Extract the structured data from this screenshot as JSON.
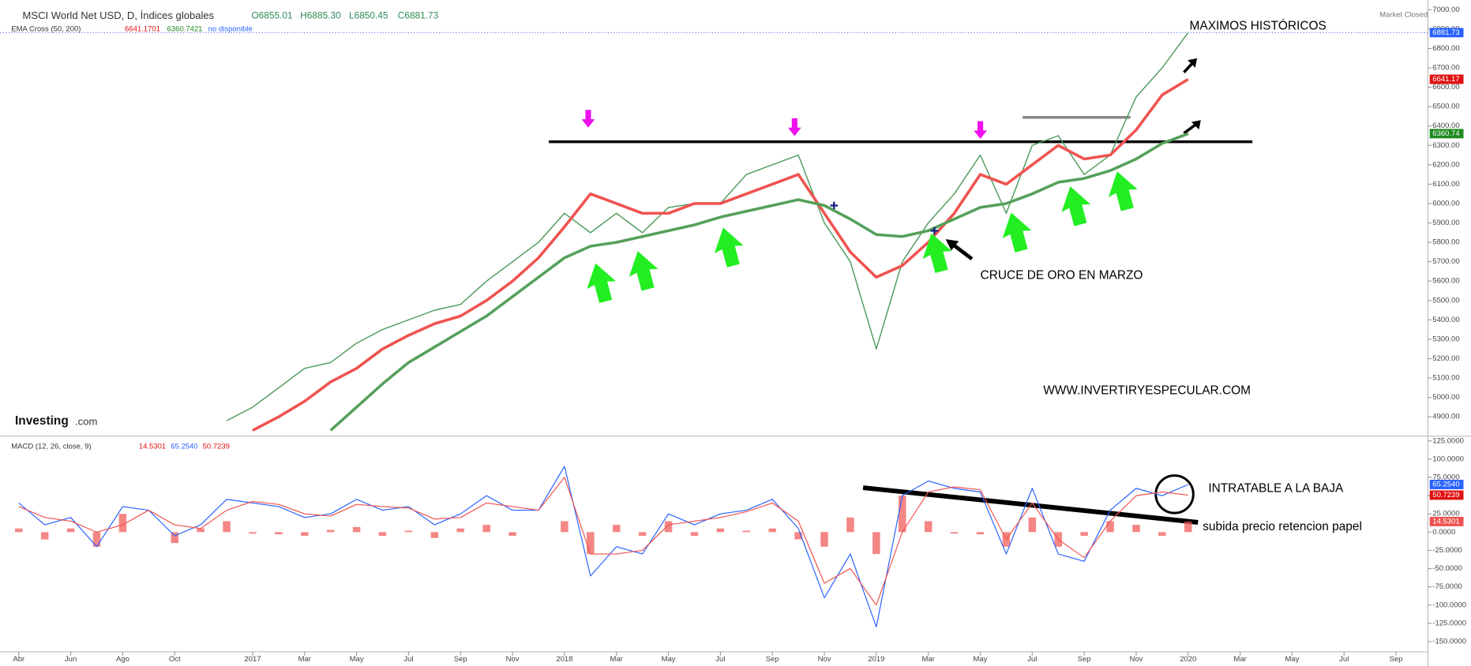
{
  "header": {
    "title": "MSCI World Net USD, D, Índices globales",
    "ohlc": [
      "O6855.01",
      "H6885.30",
      "L6850.45",
      "C6881.73"
    ],
    "indicator": "EMA Cross (50, 200)",
    "indicator_values": [
      "6641.1701",
      "6360.7421",
      "no disponible"
    ],
    "status": "Market Closed",
    "brand": [
      "Investing",
      ".com"
    ]
  },
  "chart_data": [
    {
      "type": "line",
      "ylim": [
        4810,
        7025
      ],
      "yticks": [
        {
          "value": 4900,
          "label": "4900.00"
        },
        {
          "value": 5000,
          "label": "5000.00"
        },
        {
          "value": 5100,
          "label": "5100.00"
        },
        {
          "value": 5200,
          "label": "5200.00"
        },
        {
          "value": 5300,
          "label": "5300.00"
        },
        {
          "value": 5400,
          "label": "5400.00"
        },
        {
          "value": 5500,
          "label": "5500.00"
        },
        {
          "value": 5600,
          "label": "5600.00"
        },
        {
          "value": 5700,
          "label": "5700.00"
        },
        {
          "value": 5800,
          "label": "5800.00"
        },
        {
          "value": 5900,
          "label": "5900.00"
        },
        {
          "value": 6000,
          "label": "6000.00"
        },
        {
          "value": 6100,
          "label": "6100.00"
        },
        {
          "value": 6200,
          "label": "6200.00"
        },
        {
          "value": 6300,
          "label": "6300.00"
        },
        {
          "value": 6400,
          "label": "6400.00"
        },
        {
          "value": 6500,
          "label": "6500.00"
        },
        {
          "value": 6600,
          "label": "6600.00"
        },
        {
          "value": 6700,
          "label": "6700.00"
        },
        {
          "value": 6800,
          "label": "6800.00"
        },
        {
          "value": 6900,
          "label": "6900.00"
        },
        {
          "value": 7000,
          "label": "7000.00"
        }
      ],
      "series": [
        {
          "color": "#4c9a5c",
          "values": [
            null,
            null,
            null,
            null,
            null,
            null,
            null,
            null,
            4880,
            4950,
            5050,
            5150,
            5180,
            5280,
            5350,
            5400,
            5450,
            5480,
            5600,
            5700,
            5800,
            5950,
            5850,
            5950,
            5850,
            5980,
            6000,
            6000,
            6150,
            6200,
            6250,
            5900,
            5700,
            5250,
            5700,
            5900,
            6050,
            6250,
            5950,
            6300,
            6350,
            6150,
            6250,
            6550,
            6700,
            6881.73,
            null,
            null,
            null,
            null,
            null,
            null,
            null,
            null
          ],
          "value_labels": {
            "45": "6881.73"
          },
          "badge_color": "#2962ff"
        },
        {
          "color": "#ef5350",
          "values": [
            null,
            null,
            null,
            null,
            null,
            null,
            null,
            null,
            null,
            4830,
            4900,
            4980,
            5080,
            5150,
            5250,
            5320,
            5380,
            5420,
            5500,
            5600,
            5720,
            5880,
            6050,
            6000,
            5950,
            5950,
            6000,
            6000,
            6050,
            6100,
            6150,
            5950,
            5750,
            5620,
            5680,
            5800,
            5950,
            6150,
            6100,
            6200,
            6300,
            6230,
            6250,
            6380,
            6560,
            6641.17,
            null,
            null,
            null,
            null,
            null,
            null,
            null,
            null
          ],
          "value_labels": {
            "45": "6641.17"
          },
          "badge_color": "#e01010"
        },
        {
          "color": "#55a05a",
          "values": [
            null,
            null,
            null,
            null,
            null,
            null,
            null,
            null,
            null,
            null,
            null,
            null,
            4830,
            4950,
            5070,
            5180,
            5260,
            5340,
            5420,
            5520,
            5620,
            5720,
            5780,
            5800,
            5830,
            5860,
            5890,
            5930,
            5960,
            5990,
            6020,
            5990,
            5920,
            5840,
            5830,
            5860,
            5920,
            5980,
            6000,
            6050,
            6110,
            6130,
            6170,
            6230,
            6310,
            6360.74,
            null,
            null,
            null,
            null,
            null,
            null,
            null,
            null
          ],
          "value_labels": {
            "45": "6360.74"
          },
          "badge_color": "#1e8a1e"
        }
      ],
      "annotations": [
        "MAXIMOS HISTÓRICOS",
        "CRUCE DE ORO EN MARZO",
        "WWW.INVERTIRYESPECULAR.COM"
      ]
    },
    {
      "type": "macd",
      "title": "MACD (12, 26, close, 9)",
      "legend_values": [
        "14.5301",
        "65.2540",
        "50.7239"
      ],
      "ylim": [
        -164,
        129
      ],
      "yticks": [
        {
          "value": 125,
          "label": "125.0000"
        },
        {
          "value": 100,
          "label": "100.0000"
        },
        {
          "value": 75,
          "label": "75.0000"
        },
        {
          "value": 50,
          "label": "50.0000"
        },
        {
          "value": 25,
          "label": "25.0000"
        },
        {
          "value": 0,
          "label": "0.0000"
        },
        {
          "value": -25,
          "label": "-25.0000"
        },
        {
          "value": -50,
          "label": "-50.0000"
        },
        {
          "value": -75,
          "label": "-75.0000"
        },
        {
          "value": -100,
          "label": "-100.0000"
        },
        {
          "value": -125,
          "label": "-125.0000"
        },
        {
          "value": -150,
          "label": "-150.0000"
        }
      ],
      "categories": [
        "Abr",
        null,
        "Jun",
        null,
        "Ago",
        null,
        "Oct",
        null,
        null,
        "2017",
        null,
        "Mar",
        null,
        "May",
        null,
        "Jul",
        null,
        "Sep",
        null,
        "Nov",
        null,
        "2018",
        null,
        "Mar",
        null,
        "May",
        null,
        "Jul",
        null,
        "Sep",
        null,
        "Nov",
        null,
        "2019",
        null,
        "Mar",
        null,
        "May",
        null,
        "Jul",
        null,
        "Sep",
        null,
        "Nov",
        null,
        "2020",
        null,
        "Mar",
        null,
        "May",
        null,
        "Jul",
        null,
        "Sep"
      ],
      "histogram": {
        "color": "#ef5350",
        "values": [
          5,
          -10,
          5,
          -20,
          25,
          0,
          -15,
          5,
          15,
          -2,
          -3,
          -5,
          3,
          7,
          -5,
          2,
          -8,
          5,
          10,
          -5,
          0,
          15,
          -30,
          10,
          -5,
          15,
          -5,
          5,
          2,
          5,
          -10,
          -20,
          20,
          -30,
          50,
          15,
          -2,
          -3,
          -20,
          20,
          -20,
          -5,
          15,
          10,
          -5,
          14.53,
          null,
          null,
          null,
          null,
          null,
          null,
          null,
          null
        ],
        "value_labels": {
          "45": "14.5301"
        },
        "badge_color": "#ef5350"
      },
      "series": [
        {
          "color": "#2962ff",
          "values": [
            40,
            10,
            20,
            -20,
            35,
            30,
            -5,
            10,
            45,
            40,
            35,
            20,
            25,
            45,
            30,
            35,
            10,
            25,
            50,
            30,
            30,
            90,
            -60,
            -20,
            -30,
            25,
            10,
            25,
            30,
            45,
            5,
            -90,
            -30,
            -130,
            50,
            70,
            60,
            55,
            -30,
            60,
            -30,
            -40,
            30,
            60,
            50,
            65.254,
            null,
            null,
            null,
            null,
            null,
            null,
            null,
            null
          ],
          "value_labels": {
            "45": "65.2540"
          },
          "badge_color": "#2962ff"
        },
        {
          "color": "#ef5350",
          "values": [
            35,
            20,
            15,
            0,
            10,
            30,
            10,
            5,
            30,
            42,
            38,
            25,
            22,
            38,
            35,
            33,
            18,
            20,
            40,
            35,
            30,
            75,
            -30,
            -30,
            -25,
            10,
            15,
            20,
            28,
            40,
            15,
            -70,
            -50,
            -100,
            0,
            55,
            62,
            58,
            -10,
            40,
            -10,
            -35,
            15,
            50,
            55,
            50.7239,
            null,
            null,
            null,
            null,
            null,
            null,
            null,
            null
          ],
          "value_labels": {
            "45": "50.7239"
          },
          "badge_color": "#e01010"
        }
      ],
      "annotations": [
        "INTRATABLE A LA BAJA",
        "subida precio retencion papel"
      ]
    }
  ]
}
